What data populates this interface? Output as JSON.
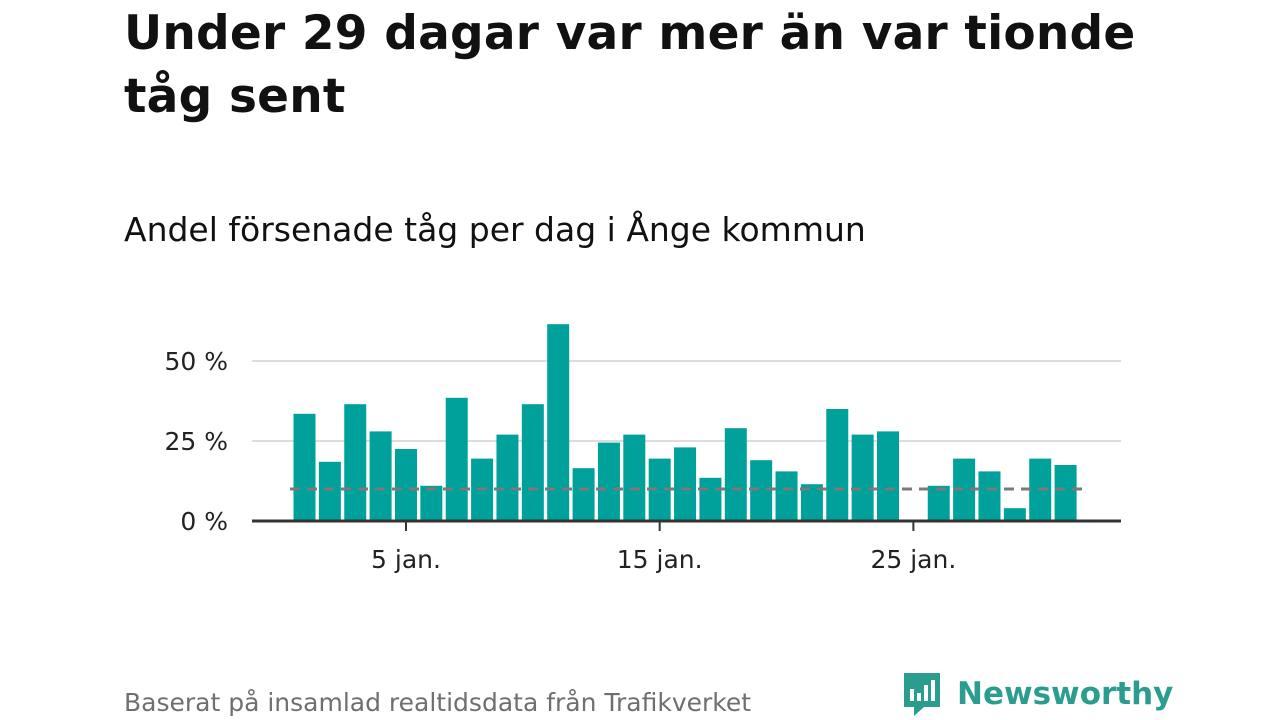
{
  "header": {
    "title": "Under 29 dagar var mer än var tionde tåg sent",
    "subtitle": "Andel försenade tåg per dag i Ånge kommun"
  },
  "footer": {
    "source": "Baserat på insamlad realtidsdata från Trafikverket",
    "brand": "Newsworthy"
  },
  "colors": {
    "bar": "#00a19a",
    "threshold": "#7a7a7a",
    "grid": "#dddddd",
    "axis": "#333333",
    "brand": "#2a9d8f"
  },
  "chart_data": {
    "type": "bar",
    "x": [
      1,
      2,
      3,
      4,
      5,
      6,
      7,
      8,
      9,
      10,
      11,
      12,
      13,
      14,
      15,
      16,
      17,
      18,
      19,
      20,
      21,
      22,
      23,
      24,
      25,
      26,
      27,
      28,
      29,
      30,
      31
    ],
    "values": [
      33.5,
      18.5,
      36.5,
      28,
      22.5,
      11,
      38.5,
      19.5,
      27,
      36.5,
      61.5,
      16.5,
      24.5,
      27,
      19.5,
      23,
      13.5,
      29,
      19,
      15.5,
      11.5,
      35,
      27,
      28,
      0,
      11,
      19.5,
      15.5,
      4,
      19.5,
      17.5
    ],
    "x_ticks": [
      {
        "x": 5,
        "label": "5 jan."
      },
      {
        "x": 15,
        "label": "15 jan."
      },
      {
        "x": 25,
        "label": "25 jan."
      }
    ],
    "y_ticks": [
      {
        "value": 0,
        "label": "0 %"
      },
      {
        "value": 25,
        "label": "25 %"
      },
      {
        "value": 50,
        "label": "50 %"
      }
    ],
    "threshold": 10,
    "ylim": [
      0,
      62
    ],
    "grid": true
  }
}
